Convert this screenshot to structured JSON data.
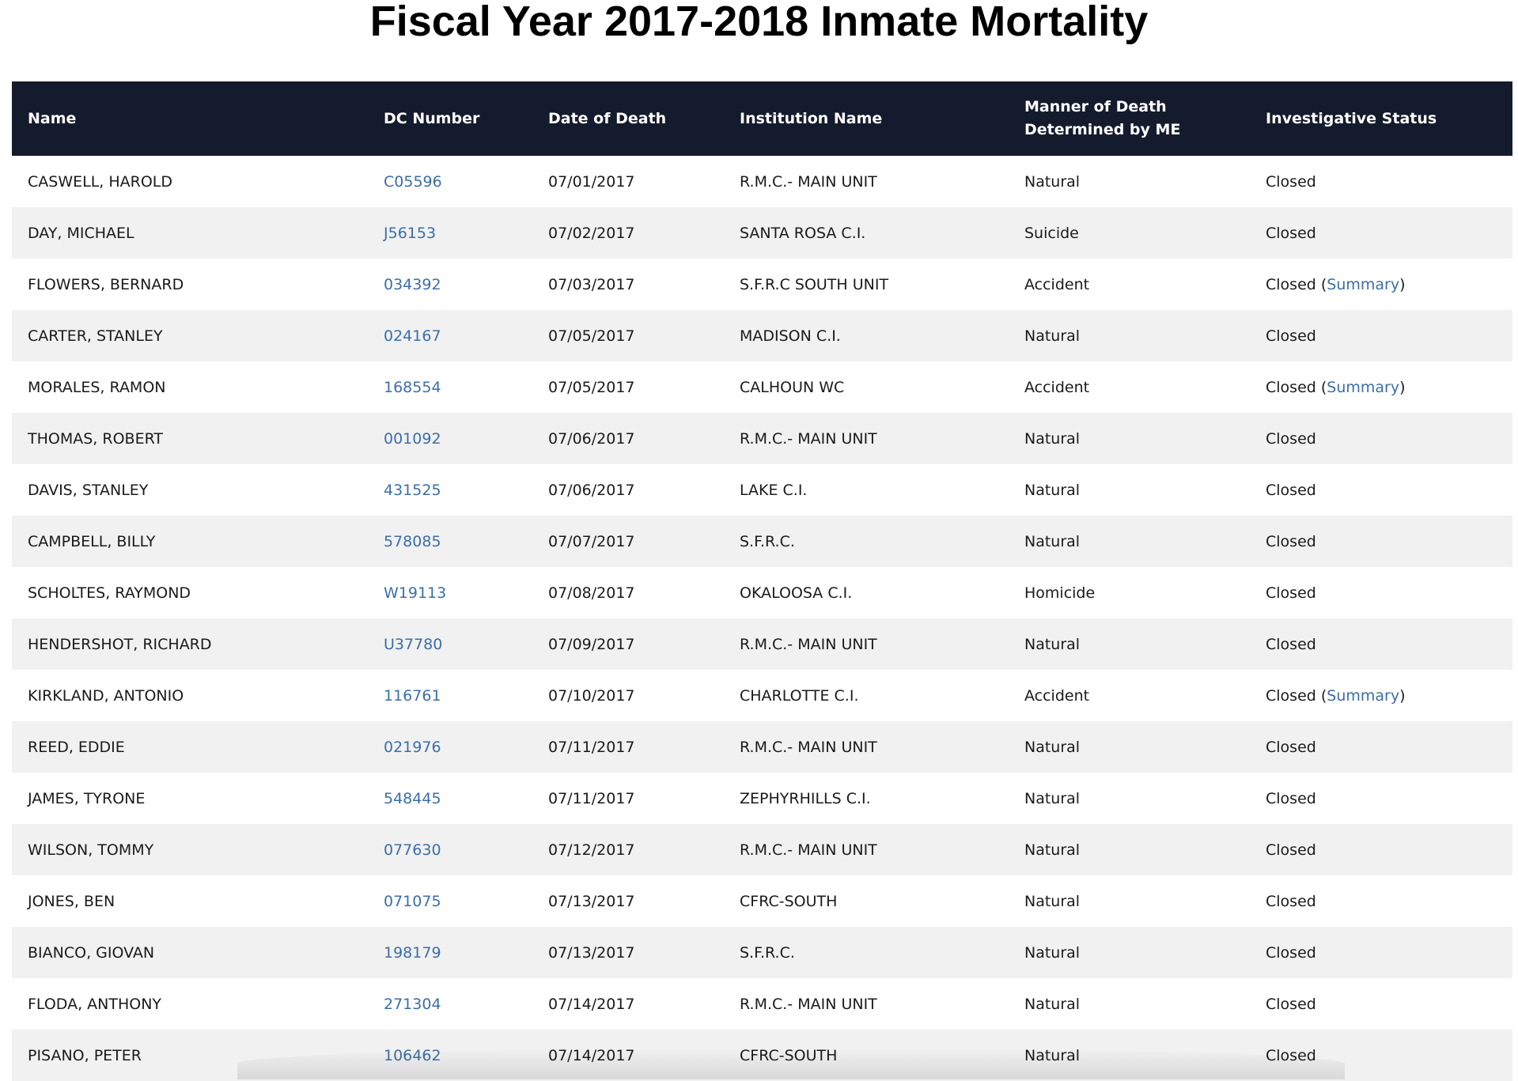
{
  "page": {
    "title": "Fiscal Year 2017-2018 Inmate Mortality"
  },
  "table": {
    "headers": {
      "name": "Name",
      "dc_number": "DC Number",
      "date_of_death": "Date of Death",
      "institution": "Institution Name",
      "manner_line1": "Manner of Death",
      "manner_line2": "Determined by ME",
      "status": "Investigative Status"
    },
    "rows": [
      {
        "name": "CASWELL, HAROLD",
        "dc": "C05596",
        "date": "07/01/2017",
        "institution": "R.M.C.- MAIN UNIT",
        "manner": "Natural",
        "status": "Closed",
        "summary": false
      },
      {
        "name": "DAY, MICHAEL",
        "dc": "J56153",
        "date": "07/02/2017",
        "institution": "SANTA ROSA C.I.",
        "manner": "Suicide",
        "status": "Closed",
        "summary": false
      },
      {
        "name": "FLOWERS, BERNARD",
        "dc": "034392",
        "date": "07/03/2017",
        "institution": "S.F.R.C SOUTH UNIT",
        "manner": "Accident",
        "status": "Closed",
        "summary": true
      },
      {
        "name": "CARTER, STANLEY",
        "dc": "024167",
        "date": "07/05/2017",
        "institution": "MADISON C.I.",
        "manner": "Natural",
        "status": "Closed",
        "summary": false
      },
      {
        "name": "MORALES, RAMON",
        "dc": "168554",
        "date": "07/05/2017",
        "institution": "CALHOUN WC",
        "manner": "Accident",
        "status": "Closed",
        "summary": true
      },
      {
        "name": "THOMAS, ROBERT",
        "dc": "001092",
        "date": "07/06/2017",
        "institution": "R.M.C.- MAIN UNIT",
        "manner": "Natural",
        "status": "Closed",
        "summary": false
      },
      {
        "name": "DAVIS, STANLEY",
        "dc": "431525",
        "date": "07/06/2017",
        "institution": "LAKE C.I.",
        "manner": "Natural",
        "status": "Closed",
        "summary": false
      },
      {
        "name": "CAMPBELL, BILLY",
        "dc": "578085",
        "date": "07/07/2017",
        "institution": "S.F.R.C.",
        "manner": "Natural",
        "status": "Closed",
        "summary": false
      },
      {
        "name": "SCHOLTES, RAYMOND",
        "dc": "W19113",
        "date": "07/08/2017",
        "institution": "OKALOOSA C.I.",
        "manner": "Homicide",
        "status": "Closed",
        "summary": false
      },
      {
        "name": "HENDERSHOT, RICHARD",
        "dc": "U37780",
        "date": "07/09/2017",
        "institution": "R.M.C.- MAIN UNIT",
        "manner": "Natural",
        "status": "Closed",
        "summary": false
      },
      {
        "name": "KIRKLAND, ANTONIO",
        "dc": "116761",
        "date": "07/10/2017",
        "institution": "CHARLOTTE C.I.",
        "manner": "Accident",
        "status": "Closed",
        "summary": true
      },
      {
        "name": "REED, EDDIE",
        "dc": "021976",
        "date": "07/11/2017",
        "institution": "R.M.C.- MAIN UNIT",
        "manner": "Natural",
        "status": "Closed",
        "summary": false
      },
      {
        "name": "JAMES, TYRONE",
        "dc": "548445",
        "date": "07/11/2017",
        "institution": "ZEPHYRHILLS C.I.",
        "manner": "Natural",
        "status": "Closed",
        "summary": false
      },
      {
        "name": "WILSON, TOMMY",
        "dc": "077630",
        "date": "07/12/2017",
        "institution": "R.M.C.- MAIN UNIT",
        "manner": "Natural",
        "status": "Closed",
        "summary": false
      },
      {
        "name": "JONES, BEN",
        "dc": "071075",
        "date": "07/13/2017",
        "institution": "CFRC-SOUTH",
        "manner": "Natural",
        "status": "Closed",
        "summary": false
      },
      {
        "name": "BIANCO, GIOVAN",
        "dc": "198179",
        "date": "07/13/2017",
        "institution": "S.F.R.C.",
        "manner": "Natural",
        "status": "Closed",
        "summary": false
      },
      {
        "name": "FLODA, ANTHONY",
        "dc": "271304",
        "date": "07/14/2017",
        "institution": "R.M.C.- MAIN UNIT",
        "manner": "Natural",
        "status": "Closed",
        "summary": false
      },
      {
        "name": "PISANO, PETER",
        "dc": "106462",
        "date": "07/14/2017",
        "institution": "CFRC-SOUTH",
        "manner": "Natural",
        "status": "Closed",
        "summary": false
      }
    ],
    "summary_label": "Summary"
  },
  "colors": {
    "header_bg": "#141b2d",
    "link": "#3b6ea8",
    "row_alt": "#f1f1f1"
  }
}
